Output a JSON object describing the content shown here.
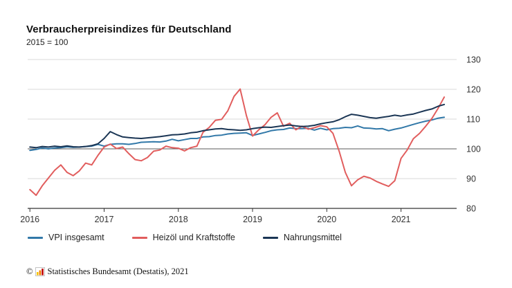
{
  "title": "Verbraucherpreisindizes für Deutschland",
  "subtitle": "2015 = 100",
  "legend": [
    {
      "label": "VPI insgesamt",
      "color": "#3178a8"
    },
    {
      "label": "Heizöl und Kraftstoffe",
      "color": "#e15d5d"
    },
    {
      "label": "Nahrungsmittel",
      "color": "#1a3554"
    }
  ],
  "footer": {
    "copyright": "©",
    "source": "Statistisches Bundesamt (Destatis), 2021"
  },
  "chart_data": {
    "type": "line",
    "title": "Verbraucherpreisindizes für Deutschland",
    "subtitle": "2015 = 100",
    "x_unit": "month",
    "x_start": "2016-01",
    "x_end": "2021-08",
    "xlim": [
      2015.97,
      2021.75
    ],
    "ylim": [
      80,
      130
    ],
    "xticks": [
      2016,
      2017,
      2018,
      2019,
      2020,
      2021
    ],
    "xtick_labels": [
      "2016",
      "2017",
      "2018",
      "2019",
      "2020",
      "2021"
    ],
    "yticks": [
      80,
      90,
      100,
      110,
      120,
      130
    ],
    "baseline": 100,
    "grid": "horizontal",
    "legend_position": "bottom",
    "series": [
      {
        "name": "VPI insgesamt",
        "color": "#3178a8",
        "values": [
          99.5,
          99.8,
          100.3,
          100.0,
          100.3,
          100.4,
          100.7,
          100.5,
          100.6,
          100.8,
          100.9,
          101.5,
          100.9,
          101.5,
          101.7,
          101.7,
          101.5,
          101.8,
          102.2,
          102.3,
          102.4,
          102.3,
          102.6,
          103.2,
          102.7,
          103.1,
          103.5,
          103.5,
          104.0,
          104.1,
          104.5,
          104.6,
          105.0,
          105.2,
          105.3,
          105.4,
          104.5,
          105.0,
          105.5,
          106.1,
          106.4,
          106.5,
          107.0,
          106.8,
          106.8,
          106.9,
          106.3,
          106.9,
          106.4,
          106.8,
          106.9,
          107.2,
          107.1,
          107.7,
          107.0,
          106.9,
          106.7,
          106.8,
          106.1,
          106.6,
          107.0,
          107.6,
          108.2,
          108.8,
          109.3,
          109.7,
          110.3,
          110.6
        ]
      },
      {
        "name": "Heizöl und Kraftstoffe",
        "color": "#e15d5d",
        "values": [
          86.3,
          84.4,
          87.6,
          90.2,
          92.8,
          94.6,
          92.1,
          91.0,
          92.6,
          95.2,
          94.6,
          97.8,
          100.6,
          101.6,
          100.1,
          100.6,
          98.4,
          96.4,
          96.0,
          97.1,
          99.2,
          99.6,
          100.9,
          100.4,
          100.2,
          99.3,
          100.4,
          100.9,
          105.6,
          107.2,
          109.6,
          109.9,
          112.8,
          117.6,
          120.1,
          111.2,
          104.3,
          106.4,
          108.1,
          110.6,
          112.1,
          107.6,
          108.6,
          106.4,
          107.6,
          106.6,
          107.1,
          107.8,
          107.4,
          105.2,
          99.2,
          92.1,
          87.6,
          89.6,
          90.8,
          90.2,
          89.1,
          88.2,
          87.4,
          89.3,
          96.8,
          99.6,
          103.4,
          105.2,
          107.6,
          110.2,
          113.6,
          117.4
        ]
      },
      {
        "name": "Nahrungsmittel",
        "color": "#1a3554",
        "values": [
          100.6,
          100.4,
          100.8,
          100.6,
          100.9,
          100.7,
          101.0,
          100.7,
          100.6,
          100.8,
          101.1,
          101.7,
          103.5,
          105.8,
          104.8,
          104.0,
          103.8,
          103.6,
          103.5,
          103.7,
          103.9,
          104.1,
          104.4,
          104.7,
          104.8,
          105.0,
          105.4,
          105.6,
          106.1,
          106.4,
          106.7,
          106.8,
          106.5,
          106.4,
          106.2,
          106.4,
          106.8,
          107.1,
          107.3,
          107.2,
          107.5,
          107.8,
          108.0,
          107.7,
          107.5,
          107.6,
          107.9,
          108.4,
          108.8,
          109.1,
          109.8,
          110.8,
          111.6,
          111.3,
          110.9,
          110.5,
          110.3,
          110.6,
          110.9,
          111.3,
          111.0,
          111.4,
          111.7,
          112.3,
          112.9,
          113.4,
          114.3,
          114.9
        ]
      }
    ]
  }
}
